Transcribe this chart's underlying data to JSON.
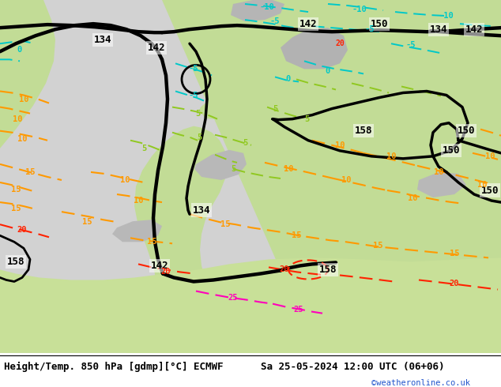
{
  "title_left": "Height/Temp. 850 hPa [gdmp][°C] ECMWF",
  "title_right": "Sa 25-05-2024 12:00 UTC (06+06)",
  "credit": "©weatheronline.co.uk",
  "fig_width": 6.34,
  "fig_height": 4.9,
  "dpi": 100,
  "bg_gray": "#d2d2d2",
  "land_green_light": "#c8e8a0",
  "land_green_mid": "#b0d880",
  "land_gray": "#b0b0b0",
  "bottom_bar_color": "#e8e8e8",
  "title_fontsize": 9,
  "credit_color": "#2255cc",
  "cyan": "#00c8c8",
  "green_t": "#90c820",
  "orange_t": "#ff9900",
  "red_t": "#ff2200",
  "magenta_t": "#ff00bb",
  "black_h": "#000000"
}
